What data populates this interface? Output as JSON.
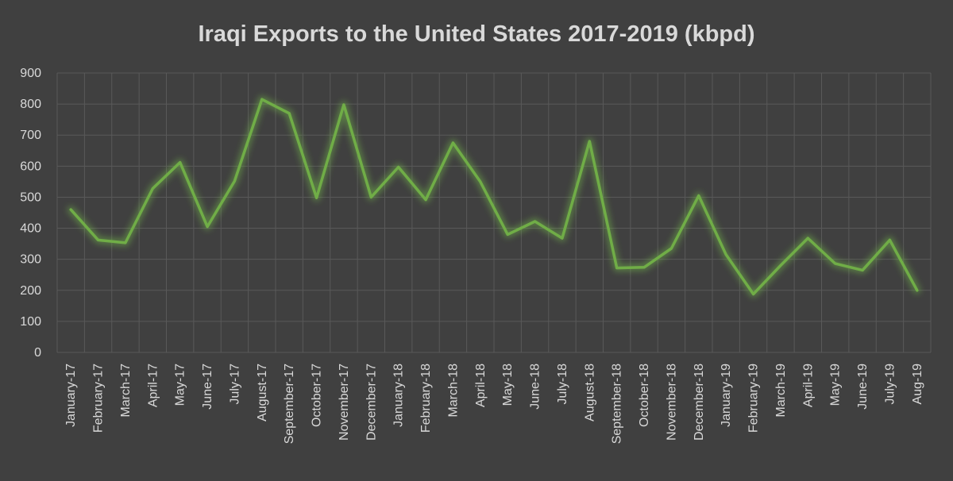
{
  "chart_data": {
    "type": "line",
    "title": "Iraqi Exports to the United States 2017-2019 (kbpd)",
    "xlabel": "",
    "ylabel": "",
    "ylim": [
      0,
      900
    ],
    "yticks": [
      0,
      100,
      200,
      300,
      400,
      500,
      600,
      700,
      800,
      900
    ],
    "grid": true,
    "categories": [
      "January-17",
      "February-17",
      "March-17",
      "April-17",
      "May-17",
      "June-17",
      "July-17",
      "August-17",
      "September-17",
      "October-17",
      "November-17",
      "December-17",
      "January-18",
      "February-18",
      "March-18",
      "April-18",
      "May-18",
      "June-18",
      "July-18",
      "August-18",
      "September-18",
      "October-18",
      "November-18",
      "December-18",
      "January-19",
      "February-19",
      "March-19",
      "April-19",
      "May-19",
      "June-19",
      "July-19",
      "Aug-19"
    ],
    "series": [
      {
        "name": "Iraqi Exports to the United States",
        "color": "#70ad47",
        "values": [
          460,
          362,
          353,
          528,
          612,
          405,
          552,
          815,
          770,
          498,
          798,
          500,
          597,
          492,
          675,
          550,
          380,
          422,
          368,
          680,
          272,
          274,
          335,
          505,
          315,
          188,
          280,
          368,
          286,
          265,
          362,
          200
        ]
      }
    ]
  },
  "colors": {
    "background": "#404040",
    "grid": "#595959",
    "text": "#d9d9d9",
    "line": "#70ad47"
  }
}
